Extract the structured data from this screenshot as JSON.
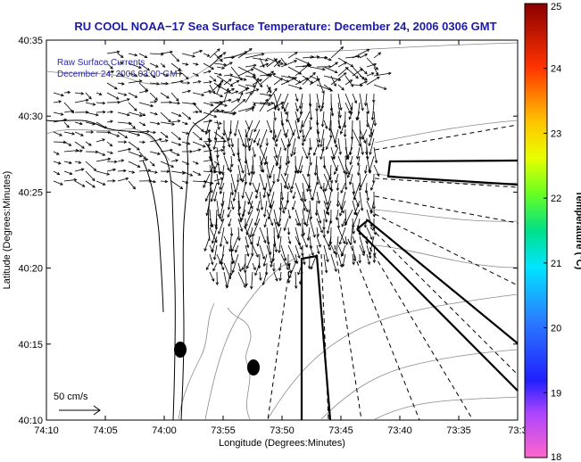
{
  "title": "RU COOL  NOAA−17  Sea Surface Temperature:  December 24, 2006 0306 GMT",
  "overlay": {
    "line1": "Raw Surface Currents",
    "line2": "December 24, 2006 03:00 GMT"
  },
  "scale": {
    "label": "50 cm/s"
  },
  "axes": {
    "xlabel": "Longitude (Degrees:Minutes)",
    "ylabel": "Latitude (Degrees:Minutes)",
    "xticks": [
      "74:10",
      "74:05",
      "74:00",
      "73:55",
      "73:50",
      "73:45",
      "73:40",
      "73:35",
      "73:3"
    ],
    "yticks": [
      "40:35",
      "40:30",
      "40:25",
      "40:20",
      "40:15",
      "40:10"
    ]
  },
  "colorbar": {
    "label": "Temperature (°C)",
    "ticks": [
      "25",
      "24",
      "23",
      "22",
      "21",
      "20",
      "19",
      "18"
    ]
  },
  "colors": {
    "title": "#1a1aa8",
    "overlay_text": "#2a2ab0"
  },
  "chart_data": {
    "type": "map",
    "x_range": [
      "74:10",
      "73:3"
    ],
    "y_range": [
      "40:10",
      "40:35"
    ],
    "colorbar_range": [
      18,
      25
    ],
    "markers": [
      "filled-circle",
      "filled-circle"
    ]
  }
}
